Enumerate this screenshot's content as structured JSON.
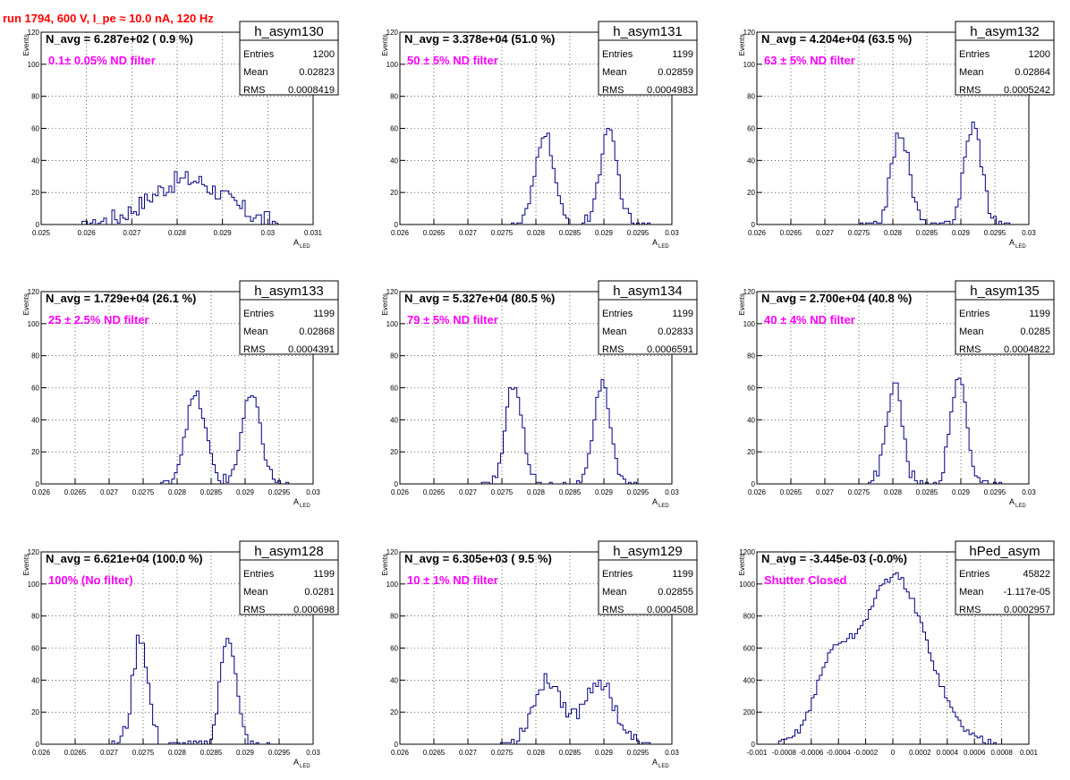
{
  "page_title": "run 1794,   600 V, I_pe ≈ 10.0 nA, 120 Hz",
  "colors": {
    "histogram": "#000080",
    "annotation": "#ff00ff",
    "title": "#ff0000",
    "grid": "#000000"
  },
  "chart_data": [
    {
      "type": "histogram",
      "name": "h_asym130",
      "nav_text": "N_avg = 6.287e+02 ( 0.9 %)",
      "filter_label": "0.1± 0.05% ND filter",
      "stats": {
        "entries_label": "Entries",
        "entries": "1200",
        "mean_label": "Mean",
        "mean": "0.02823",
        "rms_label": "RMS",
        "rms": "0.0008419"
      },
      "xlabel": "A",
      "xlabel_sub": "LED",
      "ylabel": "Events",
      "xlim": [
        0.025,
        0.031
      ],
      "ylim": [
        0,
        120
      ],
      "xticks": [
        "0.025",
        "0.026",
        "0.027",
        "0.028",
        "0.029",
        "0.03",
        "0.031"
      ],
      "xtick_values": [
        0.025,
        0.026,
        0.027,
        0.028,
        0.029,
        0.03,
        0.031
      ],
      "yticks": [
        "0",
        "20",
        "40",
        "60",
        "80",
        "100",
        "120"
      ],
      "ytick_values": [
        0,
        20,
        40,
        60,
        80,
        100,
        120
      ],
      "grid": true,
      "peaks": [
        {
          "mean": 0.02823,
          "sigma": 0.00082,
          "amp": 28,
          "noise": 6
        }
      ],
      "range": [
        0.0259,
        0.0302
      ]
    },
    {
      "type": "histogram",
      "name": "h_asym131",
      "nav_text": "N_avg = 3.378e+04 (51.0 %)",
      "filter_label": "50 ± 5% ND filter",
      "stats": {
        "entries_label": "Entries",
        "entries": "1199",
        "mean_label": "Mean",
        "mean": "0.02859",
        "rms_label": "RMS",
        "rms": "0.0004983"
      },
      "xlabel": "A",
      "xlabel_sub": "LED",
      "ylabel": "Events",
      "xlim": [
        0.026,
        0.03
      ],
      "ylim": [
        0,
        120
      ],
      "xticks": [
        "0.026",
        "0.0265",
        "0.027",
        "0.0275",
        "0.028",
        "0.0285",
        "0.029",
        "0.0295",
        "0.03"
      ],
      "xtick_values": [
        0.026,
        0.0265,
        0.027,
        0.0275,
        0.028,
        0.0285,
        0.029,
        0.0295,
        0.03
      ],
      "yticks": [
        "0",
        "20",
        "40",
        "60",
        "80",
        "100",
        "120"
      ],
      "ytick_values": [
        0,
        20,
        40,
        60,
        80,
        100,
        120
      ],
      "grid": true,
      "peaks": [
        {
          "mean": 0.02813,
          "sigma": 0.00013,
          "amp": 58,
          "noise": 4
        },
        {
          "mean": 0.02907,
          "sigma": 0.00013,
          "amp": 57,
          "noise": 4
        }
      ],
      "range": [
        0.0275,
        0.0297
      ]
    },
    {
      "type": "histogram",
      "name": "h_asym132",
      "nav_text": "N_avg = 4.204e+04 (63.5 %)",
      "filter_label": "63 ± 5% ND filter",
      "stats": {
        "entries_label": "Entries",
        "entries": "1200",
        "mean_label": "Mean",
        "mean": "0.02864",
        "rms_label": "RMS",
        "rms": "0.0005242"
      },
      "xlabel": "A",
      "xlabel_sub": "LED",
      "ylabel": "Events",
      "xlim": [
        0.026,
        0.03
      ],
      "ylim": [
        0,
        120
      ],
      "xticks": [
        "0.026",
        "0.0265",
        "0.027",
        "0.0275",
        "0.028",
        "0.0285",
        "0.029",
        "0.0295",
        "0.03"
      ],
      "xtick_values": [
        0.026,
        0.0265,
        0.027,
        0.0275,
        0.028,
        0.0285,
        0.029,
        0.0295,
        0.03
      ],
      "yticks": [
        "0",
        "20",
        "40",
        "60",
        "80",
        "100",
        "120"
      ],
      "ytick_values": [
        0,
        20,
        40,
        60,
        80,
        100,
        120
      ],
      "grid": true,
      "peaks": [
        {
          "mean": 0.02811,
          "sigma": 0.00013,
          "amp": 58,
          "noise": 5
        },
        {
          "mean": 0.02918,
          "sigma": 0.00013,
          "amp": 62,
          "noise": 5
        }
      ],
      "range": [
        0.0275,
        0.0298
      ]
    },
    {
      "type": "histogram",
      "name": "h_asym133",
      "nav_text": "N_avg = 1.729e+04 (26.1 %)",
      "filter_label": "25 ± 2.5% ND filter",
      "stats": {
        "entries_label": "Entries",
        "entries": "1199",
        "mean_label": "Mean",
        "mean": "0.02868",
        "rms_label": "RMS",
        "rms": "0.0004391"
      },
      "xlabel": "A",
      "xlabel_sub": "LED",
      "ylabel": "Events",
      "xlim": [
        0.026,
        0.03
      ],
      "ylim": [
        0,
        120
      ],
      "xticks": [
        "0.026",
        "0.0265",
        "0.027",
        "0.0275",
        "0.028",
        "0.0285",
        "0.029",
        "0.0295",
        "0.03"
      ],
      "xtick_values": [
        0.026,
        0.0265,
        0.027,
        0.0275,
        0.028,
        0.0285,
        0.029,
        0.0295,
        0.03
      ],
      "yticks": [
        "0",
        "20",
        "40",
        "60",
        "80",
        "100",
        "120"
      ],
      "ytick_values": [
        0,
        20,
        40,
        60,
        80,
        100,
        120
      ],
      "grid": true,
      "peaks": [
        {
          "mean": 0.02827,
          "sigma": 0.00015,
          "amp": 55,
          "noise": 4
        },
        {
          "mean": 0.02909,
          "sigma": 0.00014,
          "amp": 55,
          "noise": 4
        }
      ],
      "range": [
        0.0277,
        0.0297
      ]
    },
    {
      "type": "histogram",
      "name": "h_asym134",
      "nav_text": "N_avg = 5.327e+04 (80.5 %)",
      "filter_label": "79 ± 5% ND filter",
      "stats": {
        "entries_label": "Entries",
        "entries": "1199",
        "mean_label": "Mean",
        "mean": "0.02833",
        "rms_label": "RMS",
        "rms": "0.0006591"
      },
      "xlabel": "A",
      "xlabel_sub": "LED",
      "ylabel": "Events",
      "xlim": [
        0.026,
        0.03
      ],
      "ylim": [
        0,
        120
      ],
      "xticks": [
        "0.026",
        "0.0265",
        "0.027",
        "0.0275",
        "0.028",
        "0.0285",
        "0.029",
        "0.0295",
        "0.03"
      ],
      "xtick_values": [
        0.026,
        0.0265,
        0.027,
        0.0275,
        0.028,
        0.0285,
        0.029,
        0.0295,
        0.03
      ],
      "yticks": [
        "0",
        "20",
        "40",
        "60",
        "80",
        "100",
        "120"
      ],
      "ytick_values": [
        0,
        20,
        40,
        60,
        80,
        100,
        120
      ],
      "grid": true,
      "peaks": [
        {
          "mean": 0.02768,
          "sigma": 0.00012,
          "amp": 64,
          "noise": 4
        },
        {
          "mean": 0.02898,
          "sigma": 0.00012,
          "amp": 62,
          "noise": 4
        }
      ],
      "range": [
        0.0272,
        0.0295
      ]
    },
    {
      "type": "histogram",
      "name": "h_asym135",
      "nav_text": "N_avg = 2.700e+04 (40.8 %)",
      "filter_label": "40 ± 4% ND filter",
      "stats": {
        "entries_label": "Entries",
        "entries": "1199",
        "mean_label": "Mean",
        "mean": "0.0285",
        "rms_label": "RMS",
        "rms": "0.0004822"
      },
      "xlabel": "A",
      "xlabel_sub": "LED",
      "ylabel": "Events",
      "xlim": [
        0.026,
        0.03
      ],
      "ylim": [
        0,
        120
      ],
      "xticks": [
        "0.026",
        "0.0265",
        "0.027",
        "0.0275",
        "0.028",
        "0.0285",
        "0.029",
        "0.0295",
        "0.03"
      ],
      "xtick_values": [
        0.026,
        0.0265,
        0.027,
        0.0275,
        0.028,
        0.0285,
        0.029,
        0.0295,
        0.03
      ],
      "yticks": [
        "0",
        "20",
        "40",
        "60",
        "80",
        "100",
        "120"
      ],
      "ytick_values": [
        0,
        20,
        40,
        60,
        80,
        100,
        120
      ],
      "grid": true,
      "peaks": [
        {
          "mean": 0.02802,
          "sigma": 0.00012,
          "amp": 62,
          "noise": 5
        },
        {
          "mean": 0.02897,
          "sigma": 0.00012,
          "amp": 66,
          "noise": 5
        }
      ],
      "range": [
        0.0275,
        0.0296
      ]
    },
    {
      "type": "histogram",
      "name": "h_asym128",
      "nav_text": "N_avg = 6.621e+04 (100.0 %)",
      "filter_label": "100% (No filter)",
      "stats": {
        "entries_label": "Entries",
        "entries": "1199",
        "mean_label": "Mean",
        "mean": "0.0281",
        "rms_label": "RMS",
        "rms": "0.000698"
      },
      "xlabel": "A",
      "xlabel_sub": "LED",
      "ylabel": "Events",
      "xlim": [
        0.026,
        0.03
      ],
      "ylim": [
        0,
        120
      ],
      "xticks": [
        "0.026",
        "0.0265",
        "0.027",
        "0.0275",
        "0.028",
        "0.0285",
        "0.029",
        "0.0295",
        "0.03"
      ],
      "xtick_values": [
        0.026,
        0.0265,
        0.027,
        0.0275,
        0.028,
        0.0285,
        0.029,
        0.0295,
        0.03
      ],
      "yticks": [
        "0",
        "20",
        "40",
        "60",
        "80",
        "100",
        "120"
      ],
      "ytick_values": [
        0,
        20,
        40,
        60,
        80,
        100,
        120
      ],
      "grid": true,
      "peaks": [
        {
          "mean": 0.02746,
          "sigma": 0.00011,
          "amp": 68,
          "noise": 6
        },
        {
          "mean": 0.02875,
          "sigma": 0.00011,
          "amp": 70,
          "noise": 6
        }
      ],
      "range": [
        0.027,
        0.0294
      ]
    },
    {
      "type": "histogram",
      "name": "h_asym129",
      "nav_text": "N_avg = 6.305e+03 ( 9.5 %)",
      "filter_label": "10 ± 1% ND filter",
      "stats": {
        "entries_label": "Entries",
        "entries": "1199",
        "mean_label": "Mean",
        "mean": "0.02855",
        "rms_label": "RMS",
        "rms": "0.0004508"
      },
      "xlabel": "A",
      "xlabel_sub": "LED",
      "ylabel": "Events",
      "xlim": [
        0.026,
        0.03
      ],
      "ylim": [
        0,
        120
      ],
      "xticks": [
        "0.026",
        "0.0265",
        "0.027",
        "0.0275",
        "0.028",
        "0.0285",
        "0.029",
        "0.0295",
        "0.03"
      ],
      "xtick_values": [
        0.026,
        0.0265,
        0.027,
        0.0275,
        0.028,
        0.0285,
        0.029,
        0.0295,
        0.03
      ],
      "yticks": [
        "0",
        "20",
        "40",
        "60",
        "80",
        "100",
        "120"
      ],
      "ytick_values": [
        0,
        20,
        40,
        60,
        80,
        100,
        120
      ],
      "grid": true,
      "peaks": [
        {
          "mean": 0.02818,
          "sigma": 0.00022,
          "amp": 40,
          "noise": 5
        },
        {
          "mean": 0.02893,
          "sigma": 0.00022,
          "amp": 40,
          "noise": 5
        }
      ],
      "range": [
        0.0274,
        0.0297
      ]
    },
    {
      "type": "histogram",
      "name": "hPed_asym",
      "nav_text": "N_avg = -3.445e-03 (-0.0%)",
      "filter_label": "Shutter Closed",
      "stats": {
        "entries_label": "Entries",
        "entries": "45822",
        "mean_label": "Mean",
        "mean": "-1.117e-05",
        "rms_label": "RMS",
        "rms": "0.0002957"
      },
      "xlabel": "",
      "xlabel_sub": "",
      "ylabel": "Events",
      "xlim": [
        -0.001,
        0.001
      ],
      "ylim": [
        0,
        1200
      ],
      "xticks": [
        "-0.001",
        "-0.0008",
        "-0.0006",
        "-0.0004",
        "-0.0002",
        "0",
        "0.0002",
        "0.0004",
        "0.0006",
        "0.0008",
        "0.001"
      ],
      "xtick_values": [
        -0.001,
        -0.0008,
        -0.0006,
        -0.0004,
        -0.0002,
        0,
        0.0002,
        0.0004,
        0.0006,
        0.0008,
        0.001
      ],
      "yticks": [
        "0",
        "200",
        "400",
        "600",
        "800",
        "1000",
        "1200"
      ],
      "ytick_values": [
        0,
        200,
        400,
        600,
        800,
        1000,
        1200
      ],
      "grid": true,
      "peaks": [
        {
          "mean": -0.00045,
          "sigma": 0.00013,
          "amp": 420,
          "noise": 25
        },
        {
          "mean": 1e-05,
          "sigma": 0.00024,
          "amp": 1050,
          "noise": 40
        }
      ],
      "range": [
        -0.00085,
        0.00075
      ]
    }
  ]
}
